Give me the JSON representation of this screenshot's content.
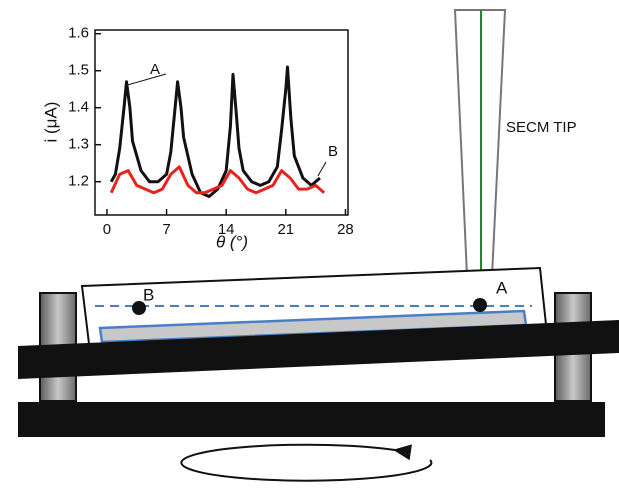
{
  "chart_data": {
    "type": "line",
    "xlabel": "θ (°)",
    "ylabel": "i (μA)",
    "xlim": [
      -1.4,
      28.3
    ],
    "xticks": [
      0,
      7,
      14,
      21,
      28
    ],
    "ylim": [
      1.11,
      1.61
    ],
    "yticks": [
      {
        "value": 1.2,
        "label": "1.2"
      },
      {
        "value": 1.3,
        "label": "1.3"
      },
      {
        "value": 1.4,
        "label": "1.4"
      },
      {
        "value": 1.5,
        "label": "1.5"
      },
      {
        "value": 1.6,
        "label": "1.6"
      }
    ],
    "series": [
      {
        "name": "A",
        "color": "#111111",
        "x": [
          0.5,
          1,
          1.5,
          2,
          2.3,
          2.7,
          3,
          4,
          5,
          6,
          7,
          7.5,
          8,
          8.3,
          8.7,
          9,
          10,
          11,
          12,
          13,
          14,
          14.5,
          14.8,
          15.2,
          15.5,
          16,
          17,
          18,
          19,
          20,
          20.5,
          21,
          21.2,
          21.6,
          22,
          23,
          24,
          25
        ],
        "values": [
          1.2,
          1.22,
          1.29,
          1.4,
          1.47,
          1.4,
          1.31,
          1.23,
          1.2,
          1.2,
          1.22,
          1.28,
          1.4,
          1.47,
          1.4,
          1.32,
          1.22,
          1.17,
          1.16,
          1.18,
          1.23,
          1.35,
          1.49,
          1.38,
          1.29,
          1.23,
          1.2,
          1.19,
          1.2,
          1.24,
          1.34,
          1.45,
          1.51,
          1.37,
          1.27,
          1.21,
          1.19,
          1.21
        ]
      },
      {
        "name": "B",
        "color": "#e8231e",
        "x": [
          0.5,
          1.5,
          2.5,
          3.5,
          4.5,
          5.5,
          6.5,
          7.5,
          8.5,
          9.5,
          10.5,
          11.5,
          12.5,
          13.5,
          14.5,
          15.5,
          16.5,
          17.5,
          18.5,
          19.5,
          20.5,
          21.5,
          22.5,
          23.5,
          24.5,
          25.5
        ],
        "values": [
          1.17,
          1.22,
          1.23,
          1.19,
          1.18,
          1.17,
          1.18,
          1.22,
          1.24,
          1.19,
          1.17,
          1.17,
          1.18,
          1.19,
          1.23,
          1.21,
          1.18,
          1.17,
          1.18,
          1.19,
          1.23,
          1.21,
          1.18,
          1.18,
          1.19,
          1.17
        ]
      }
    ]
  },
  "diagram": {
    "tip_label": "SECM TIP",
    "point_a": "A",
    "point_b": "B"
  }
}
